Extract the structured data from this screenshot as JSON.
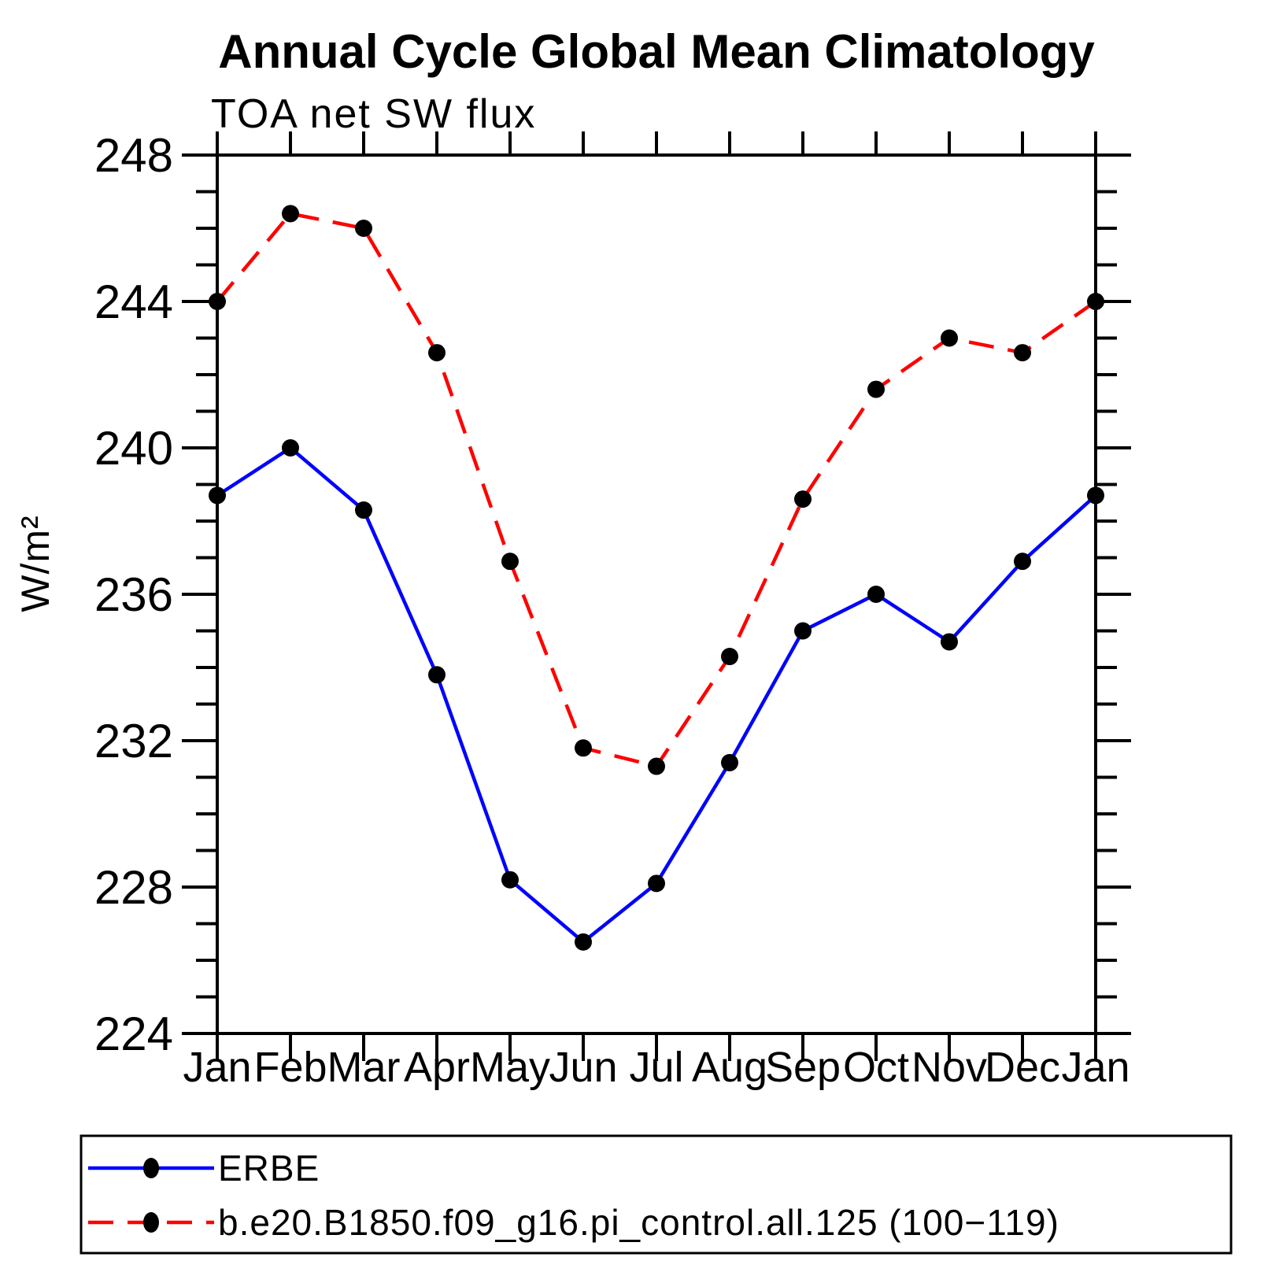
{
  "chart_data": {
    "type": "line",
    "title": "Annual Cycle Global Mean Climatology",
    "subtitle": "TOA net SW flux",
    "ylabel": "W/m²",
    "xlabel": "",
    "categories": [
      "Jan",
      "Feb",
      "Mar",
      "Apr",
      "May",
      "Jun",
      "Jul",
      "Aug",
      "Sep",
      "Oct",
      "Nov",
      "Dec",
      "Jan"
    ],
    "ylim": [
      224,
      248
    ],
    "yticks_labeled": [
      224,
      228,
      232,
      236,
      240,
      244,
      248
    ],
    "ytick_minor_step": 1,
    "grid": false,
    "legend_position": "bottom-left-box",
    "frame_color": "#000000",
    "marker_color": "#000000",
    "series": [
      {
        "name": "ERBE",
        "color": "#0000ff",
        "style": "solid",
        "marker": "circle",
        "values": [
          238.7,
          240.0,
          238.3,
          233.8,
          228.2,
          226.5,
          228.1,
          231.4,
          235.0,
          236.0,
          234.7,
          236.9,
          238.7
        ]
      },
      {
        "name": "b.e20.B1850.f09_g16.pi_control.all.125 (100−119)",
        "color": "#ff0000",
        "style": "dashed",
        "marker": "circle",
        "values": [
          244.0,
          246.4,
          246.0,
          242.6,
          236.9,
          231.8,
          231.3,
          234.3,
          238.6,
          241.6,
          243.0,
          242.6,
          244.0
        ]
      }
    ]
  }
}
